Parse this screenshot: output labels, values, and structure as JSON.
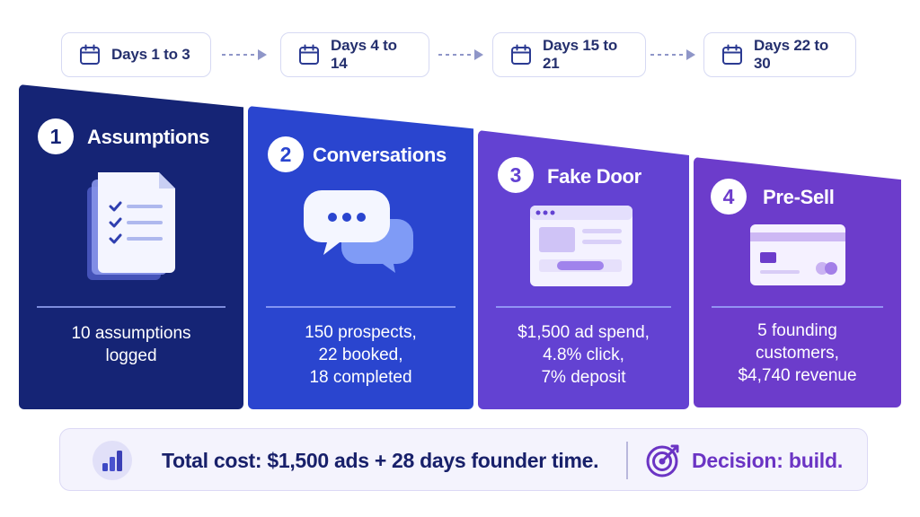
{
  "timeline": [
    {
      "label": "Days 1 to 3"
    },
    {
      "label": "Days 4 to 14"
    },
    {
      "label": "Days 15 to 21"
    },
    {
      "label": "Days 22 to 30"
    }
  ],
  "stages": [
    {
      "number": "1",
      "title": "Assumptions",
      "illustration": "document-checklist-icon",
      "stat_lines": [
        "10 assumptions",
        "logged"
      ]
    },
    {
      "number": "2",
      "title": "Conversations",
      "illustration": "chat-bubbles-icon",
      "stat_lines": [
        "150 prospects,",
        "22 booked,",
        "18 completed"
      ]
    },
    {
      "number": "3",
      "title": "Fake Door",
      "illustration": "browser-window-icon",
      "stat_lines": [
        "$1,500 ad spend,",
        "4.8% click,",
        "7% deposit"
      ]
    },
    {
      "number": "4",
      "title": "Pre-Sell",
      "illustration": "credit-card-icon",
      "stat_lines": [
        "5 founding",
        "customers,",
        "$4,740 revenue"
      ]
    }
  ],
  "summary": {
    "cost_text": "Total cost: $1,500 ads + 28 days founder time.",
    "decision_text": "Decision: build."
  },
  "colors": {
    "stage1": "#152475",
    "stage2": "#2a45cf",
    "stage3": "#6342d2",
    "stage4": "#6c3ccb",
    "pill_text": "#25306e",
    "decision": "#6b34c4"
  }
}
